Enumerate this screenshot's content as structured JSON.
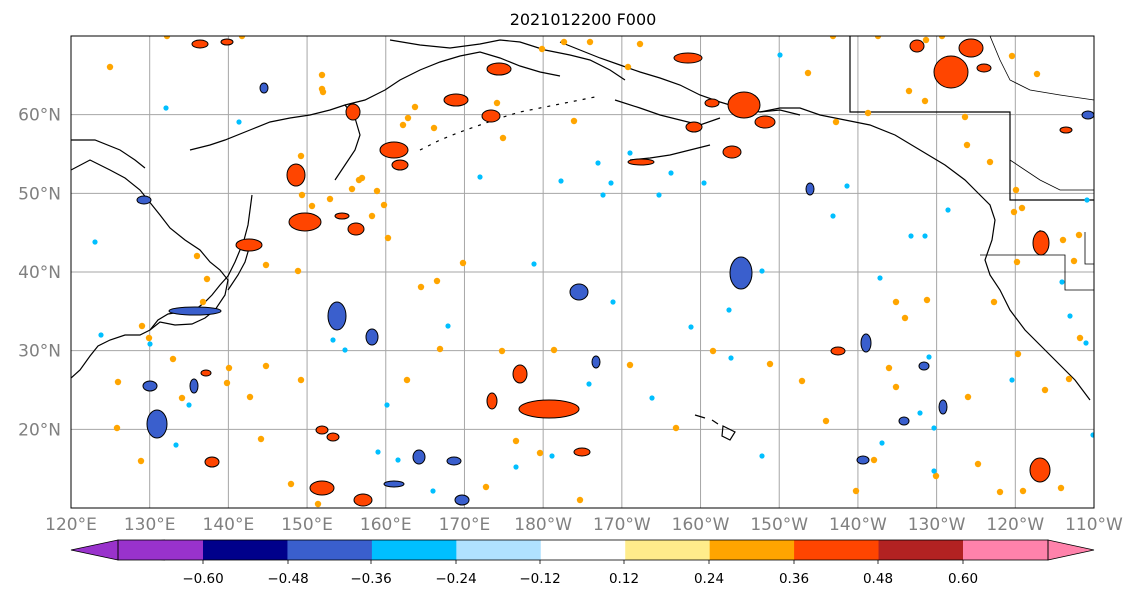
{
  "title": "2021012200 F000",
  "map": {
    "lon_labels": [
      "120°E",
      "130°E",
      "140°E",
      "150°E",
      "160°E",
      "170°E",
      "180°W",
      "170°W",
      "160°W",
      "150°W",
      "140°W",
      "130°W",
      "120°W",
      "110°W"
    ],
    "lat_labels": [
      "20°N",
      "30°N",
      "40°N",
      "50°N",
      "60°N"
    ],
    "colors": {
      "grid": "#a6a6a6",
      "coast": "#000000"
    }
  },
  "colorbar": {
    "levels": [
      "−0.60",
      "−0.48",
      "−0.36",
      "−0.24",
      "−0.12",
      "0.12",
      "0.24",
      "0.36",
      "0.48",
      "0.60"
    ],
    "colors": [
      "#9932cc",
      "#00008b",
      "#3a5fcd",
      "#00bfff",
      "#b0e2ff",
      "#ffffff",
      "#ffec8b",
      "#ffa500",
      "#ff4500",
      "#b22222",
      "#ff82ab"
    ]
  },
  "chart_data": {
    "type": "heatmap",
    "title": "2021012200 F000",
    "lon_range": [
      120,
      250
    ],
    "lat_range": [
      10,
      70
    ],
    "field_note": "scattered small positive (orange/red) and negative (blue) contour cells over the North Pacific"
  }
}
